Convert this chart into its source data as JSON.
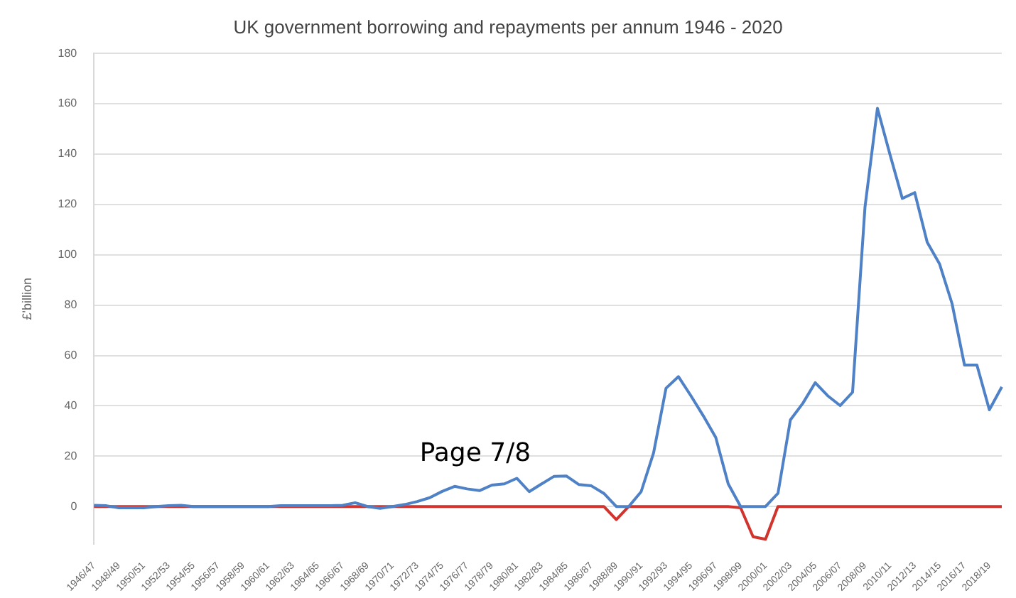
{
  "chart_data": {
    "type": "line",
    "title": "UK government borrowing and repayments per annum 1946 - 2020",
    "ylabel": "£'billion",
    "categories": [
      "1946/47",
      null,
      "1948/49",
      null,
      "1950/51",
      null,
      "1952/53",
      null,
      "1954/55",
      null,
      "1956/57",
      null,
      "1958/59",
      null,
      "1960/61",
      null,
      "1962/63",
      null,
      "1964/65",
      null,
      "1966/67",
      null,
      "1968/69",
      null,
      "1970/71",
      null,
      "1972/73",
      null,
      "1974/75",
      null,
      "1976/77",
      null,
      "1978/79",
      null,
      "1980/81",
      null,
      "1982/83",
      null,
      "1984/85",
      null,
      "1986/87",
      null,
      "1988/89",
      null,
      "1990/91",
      null,
      "1992/93",
      null,
      "1994/95",
      null,
      "1996/97",
      null,
      "1998/99",
      null,
      "2000/01",
      null,
      "2002/03",
      null,
      "2004/05",
      null,
      "2006/07",
      null,
      "2008/09",
      null,
      "2010/11",
      null,
      "2012/13",
      null,
      "2014/15",
      null,
      "2016/17",
      null,
      "2018/19",
      null
    ],
    "series": [
      {
        "color": "#4f81c7",
        "values": [
          0.5,
          0.3,
          -0.5,
          -0.5,
          -0.5,
          0,
          0.3,
          0.5,
          0,
          0,
          0,
          0,
          0,
          0,
          0,
          0.3,
          0.3,
          0.3,
          0.3,
          0.3,
          0.5,
          1.5,
          0,
          -0.7,
          0,
          0.8,
          2,
          3.5,
          6,
          8,
          7,
          6.3,
          8.5,
          9,
          11.2,
          5.9,
          9,
          12,
          12.1,
          8.7,
          8.2,
          5.2,
          0,
          0,
          5.9,
          21.3,
          47,
          51.6,
          44,
          36,
          27.4,
          9,
          0,
          0,
          0,
          5.2,
          34.4,
          41,
          49.2,
          44,
          40.1,
          45.4,
          119,
          158.2,
          140,
          122.4,
          124.7,
          105,
          96.3,
          80.6,
          56.2,
          56.2,
          38.4,
          47.5
        ]
      },
      {
        "color": "#d0342c",
        "values": [
          0,
          0,
          0,
          0,
          0,
          0,
          0,
          0,
          0,
          0,
          0,
          0,
          0,
          0,
          0,
          0,
          0,
          0,
          0,
          0,
          0,
          0,
          0,
          0,
          0,
          0,
          0,
          0,
          0,
          0,
          0,
          0,
          0,
          0,
          0,
          0,
          0,
          0,
          0,
          0,
          0,
          0,
          -5.2,
          0,
          0,
          0,
          0,
          0,
          0,
          0,
          0,
          0,
          -0.5,
          -12,
          -13,
          0,
          0,
          0,
          0,
          0,
          0,
          0,
          0,
          0,
          0,
          0,
          0,
          0,
          0,
          0,
          0,
          0,
          0,
          0
        ]
      }
    ],
    "ylim": [
      -15,
      180
    ],
    "yticks": [
      0,
      20,
      40,
      60,
      80,
      100,
      120,
      140,
      160,
      180
    ],
    "grid": "y",
    "legend": false,
    "marker": "none",
    "line_style": "solid",
    "annotations": [
      "Page 7/8"
    ]
  }
}
